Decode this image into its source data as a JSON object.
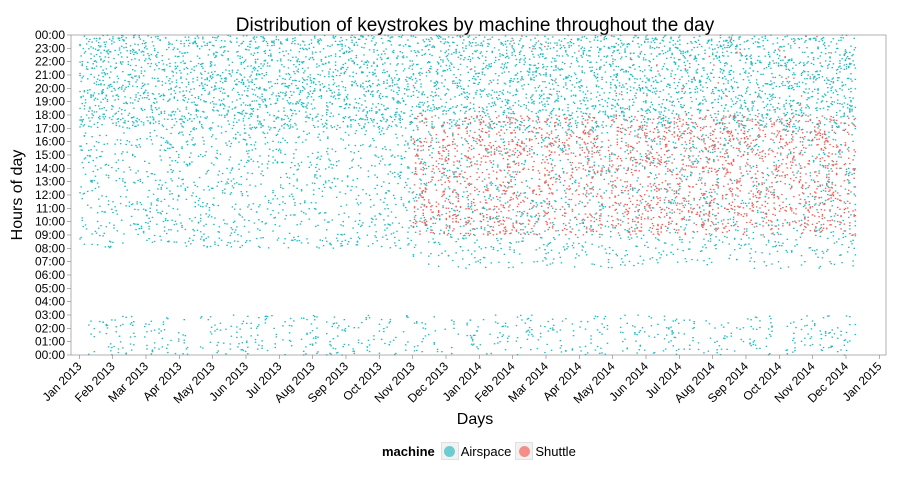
{
  "chart_data": {
    "type": "scatter",
    "title": "Distribution of keystrokes by machine throughout the day",
    "xlabel": "Days",
    "ylabel": "Hours of day",
    "x_ticks": [
      "Jan 2013",
      "Feb 2013",
      "Mar 2013",
      "Apr 2013",
      "May 2013",
      "Jun 2013",
      "Jul 2013",
      "Aug 2013",
      "Sep 2013",
      "Oct 2013",
      "Nov 2013",
      "Dec 2013",
      "Jan 2014",
      "Feb 2014",
      "Mar 2014",
      "Apr 2014",
      "May 2014",
      "Jun 2014",
      "Jul 2014",
      "Aug 2014",
      "Sep 2014",
      "Oct 2014",
      "Nov 2014",
      "Dec 2014",
      "Jan 2015"
    ],
    "y_ticks": [
      "00:00",
      "01:00",
      "02:00",
      "03:00",
      "04:00",
      "05:00",
      "06:00",
      "07:00",
      "08:00",
      "09:00",
      "10:00",
      "11:00",
      "12:00",
      "13:00",
      "14:00",
      "15:00",
      "16:00",
      "17:00",
      "18:00",
      "19:00",
      "20:00",
      "21:00",
      "22:00",
      "23:00",
      "00:00"
    ],
    "ylim": [
      0,
      24
    ],
    "xlim_months": [
      -0.25,
      24.2
    ],
    "data_range_months": [
      0,
      23.3
    ],
    "series": [
      {
        "name": "Airspace",
        "color": "#1ebcc0",
        "active_hours_before_nov_2013": [
          8,
          24
        ],
        "active_hours_after_nov_2013": [
          6.5,
          24
        ],
        "early_morning_hours": [
          0,
          3
        ]
      },
      {
        "name": "Shuttle",
        "color": "#f0605a",
        "start_month": "Nov 2013",
        "core_hours": [
          9,
          18
        ]
      }
    ],
    "legend": {
      "title": "machine",
      "position": "bottom"
    }
  }
}
